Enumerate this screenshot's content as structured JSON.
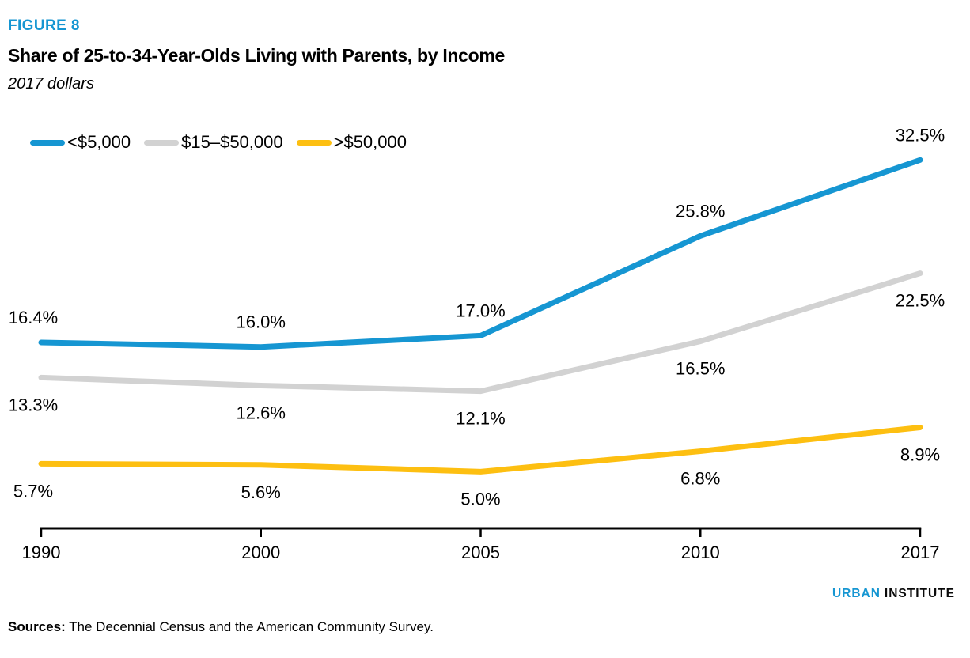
{
  "header": {
    "figure_label": "FIGURE 8",
    "title": "Share of 25-to-34-Year-Olds Living with Parents, by Income",
    "subtitle": "2017 dollars"
  },
  "colors": {
    "blue": "#1696d2",
    "gray": "#d2d2d2",
    "yellow": "#fdbf11",
    "axis": "#000000",
    "text": "#000000"
  },
  "chart_data": {
    "type": "line",
    "title": "Share of 25-to-34-Year-Olds Living with Parents, by Income",
    "subtitle": "2017 dollars",
    "xlabel": "",
    "ylabel": "",
    "grid": false,
    "legend_position": "top-left",
    "y_unit": "%",
    "ylim": [
      0,
      35
    ],
    "categories": [
      "1990",
      "2000",
      "2005",
      "2010",
      "2017"
    ],
    "series": [
      {
        "name": "<$5,000",
        "color_key": "blue",
        "values": [
          16.4,
          16.0,
          17.0,
          25.8,
          32.5
        ],
        "labels": [
          "16.4%",
          "16.0%",
          "17.0%",
          "25.8%",
          "32.5%"
        ],
        "label_position": "above"
      },
      {
        "name": "$15–$50,000",
        "color_key": "gray",
        "values": [
          13.3,
          12.6,
          12.1,
          16.5,
          22.5
        ],
        "labels": [
          "13.3%",
          "12.6%",
          "12.1%",
          "16.5%",
          "22.5%"
        ],
        "label_position": "below"
      },
      {
        "name": ">$50,000",
        "color_key": "yellow",
        "values": [
          5.7,
          5.6,
          5.0,
          6.8,
          8.9
        ],
        "labels": [
          "5.7%",
          "5.6%",
          "5.0%",
          "6.8%",
          "8.9%"
        ],
        "label_position": "below"
      }
    ]
  },
  "branding": {
    "first_word": "URBAN",
    "second_word": "INSTITUTE"
  },
  "sources": {
    "label": "Sources:",
    "text": " The Decennial Census and the American Community Survey."
  }
}
